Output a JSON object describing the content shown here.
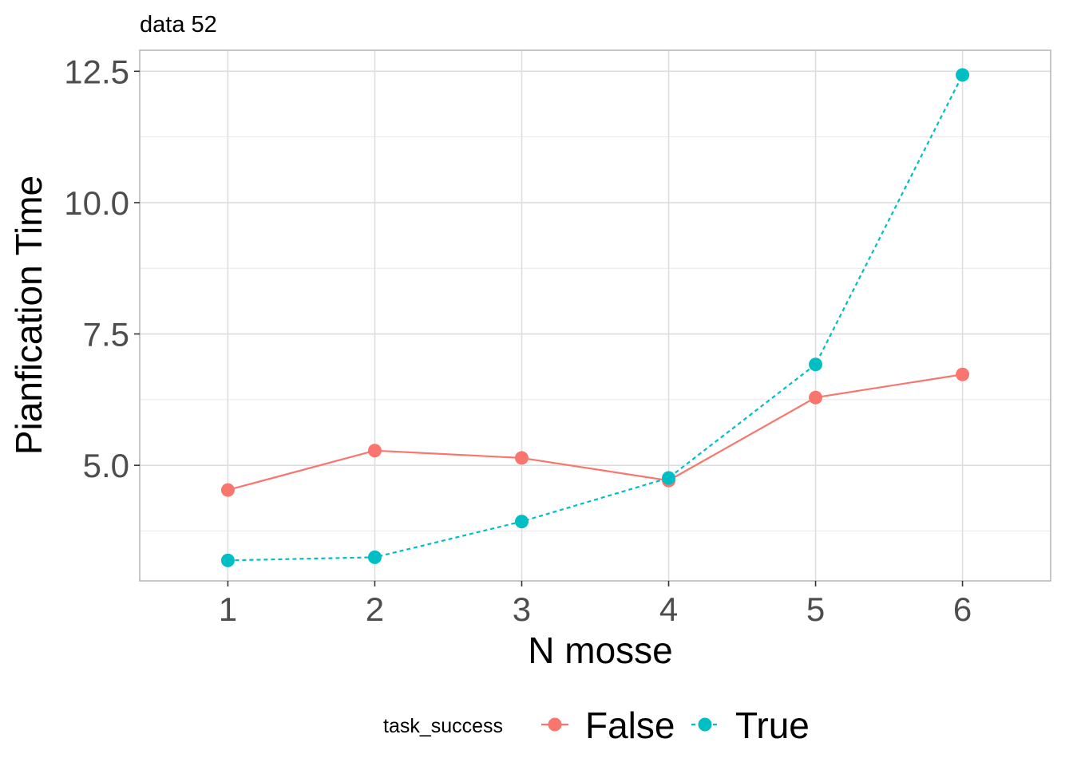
{
  "chart_data": {
    "type": "line",
    "title": "data 52",
    "xlabel": "N mosse",
    "ylabel": "Pianfication Time",
    "x": [
      1,
      2,
      3,
      4,
      5,
      6
    ],
    "xlim": [
      0.4,
      6.6
    ],
    "ylim": [
      2.8,
      12.9
    ],
    "x_ticks": [
      "1",
      "2",
      "3",
      "4",
      "5",
      "6"
    ],
    "y_ticks": [
      "5.0",
      "7.5",
      "10.0",
      "12.5"
    ],
    "y_tick_values": [
      5.0,
      7.5,
      10.0,
      12.5
    ],
    "grid": true,
    "legend": {
      "title": "task_success",
      "position": "bottom"
    },
    "series": [
      {
        "name": "False",
        "color": "#f8766d",
        "linestyle": "solid",
        "values": [
          4.53,
          5.28,
          5.14,
          4.71,
          6.29,
          6.73
        ]
      },
      {
        "name": "True",
        "color": "#00bfc4",
        "linestyle": "dashed",
        "values": [
          3.19,
          3.25,
          3.93,
          4.76,
          6.92,
          12.43
        ]
      }
    ]
  }
}
